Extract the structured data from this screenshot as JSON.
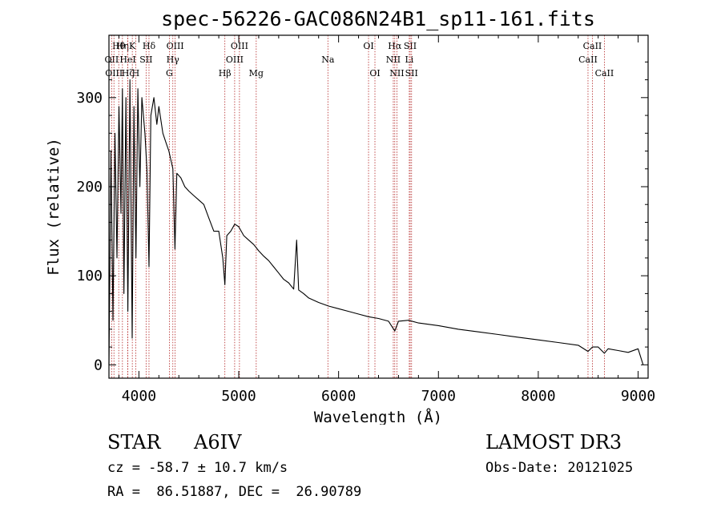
{
  "chart_data": {
    "type": "line",
    "title": "spec-56226-GAC086N24B1_sp11-161.fits",
    "xlabel": "Wavelength (Å)",
    "ylabel": "Flux (relative)",
    "xlim": [
      3700,
      9100
    ],
    "ylim": [
      -15,
      370
    ],
    "xticks": [
      4000,
      5000,
      6000,
      7000,
      8000,
      9000
    ],
    "yticks": [
      0,
      100,
      200,
      300
    ],
    "grid": false,
    "series": [
      {
        "name": "spectrum",
        "x": [
          3700,
          3720,
          3740,
          3760,
          3780,
          3800,
          3820,
          3835,
          3850,
          3870,
          3889,
          3910,
          3933,
          3950,
          3970,
          3990,
          4010,
          4030,
          4060,
          4080,
          4101,
          4120,
          4150,
          4180,
          4200,
          4240,
          4270,
          4300,
          4340,
          4361,
          4380,
          4420,
          4460,
          4500,
          4550,
          4600,
          4650,
          4700,
          4750,
          4800,
          4840,
          4861,
          4880,
          4920,
          4960,
          5000,
          5050,
          5100,
          5150,
          5200,
          5250,
          5300,
          5350,
          5400,
          5450,
          5500,
          5550,
          5580,
          5600,
          5650,
          5700,
          5800,
          5900,
          6000,
          6100,
          6200,
          6300,
          6400,
          6500,
          6563,
          6600,
          6700,
          6800,
          7000,
          7200,
          7400,
          7600,
          7800,
          8000,
          8200,
          8400,
          8498,
          8542,
          8600,
          8662,
          8700,
          8800,
          8900,
          9000,
          9050
        ],
        "y": [
          0,
          240,
          50,
          260,
          120,
          290,
          170,
          310,
          80,
          300,
          60,
          320,
          30,
          290,
          120,
          310,
          200,
          300,
          260,
          220,
          110,
          280,
          300,
          270,
          290,
          260,
          250,
          240,
          220,
          130,
          215,
          210,
          200,
          195,
          190,
          185,
          180,
          165,
          150,
          150,
          120,
          90,
          145,
          150,
          158,
          155,
          145,
          140,
          135,
          128,
          122,
          117,
          110,
          103,
          96,
          92,
          85,
          140,
          84,
          80,
          75,
          70,
          66,
          63,
          60,
          57,
          54,
          52,
          49,
          38,
          49,
          50,
          47,
          44,
          40,
          37,
          34,
          31,
          28,
          25,
          22,
          15,
          20,
          20,
          13,
          18,
          16,
          14,
          18,
          0
        ]
      }
    ],
    "lines": [
      {
        "label": "Hθ",
        "x": 3798,
        "row": 1
      },
      {
        "label": "OII",
        "x": 3727,
        "row": 2
      },
      {
        "label": "OIII",
        "x": 3750,
        "row": 3
      },
      {
        "label": "Hη",
        "x": 3835,
        "row": 1
      },
      {
        "label": "HeI",
        "x": 3889,
        "row": 2
      },
      {
        "label": "Hζ",
        "x": 3889,
        "row": 3
      },
      {
        "label": "K",
        "x": 3934,
        "row": 1
      },
      {
        "label": "SII",
        "x": 4072,
        "row": 2
      },
      {
        "label": "H",
        "x": 3968,
        "row": 3
      },
      {
        "label": "Hδ",
        "x": 4101,
        "row": 1
      },
      {
        "label": "OIII",
        "x": 4363,
        "row": 1
      },
      {
        "label": "Hγ",
        "x": 4340,
        "row": 2
      },
      {
        "label": "G",
        "x": 4305,
        "row": 3
      },
      {
        "label": "Hβ",
        "x": 4861,
        "row": 3
      },
      {
        "label": "OIII",
        "x": 5007,
        "row": 1
      },
      {
        "label": "OIII",
        "x": 4959,
        "row": 2
      },
      {
        "label": "Mg",
        "x": 5175,
        "row": 3
      },
      {
        "label": "Na",
        "x": 5893,
        "row": 2
      },
      {
        "label": "OI",
        "x": 6300,
        "row": 1
      },
      {
        "label": "OI",
        "x": 6364,
        "row": 3
      },
      {
        "label": "Hα",
        "x": 6563,
        "row": 1
      },
      {
        "label": "NII",
        "x": 6548,
        "row": 2
      },
      {
        "label": "NII",
        "x": 6584,
        "row": 3
      },
      {
        "label": "SII",
        "x": 6717,
        "row": 1
      },
      {
        "label": "Li",
        "x": 6708,
        "row": 2
      },
      {
        "label": "SII",
        "x": 6731,
        "row": 3
      },
      {
        "label": "CaII",
        "x": 8542,
        "row": 1
      },
      {
        "label": "CaII",
        "x": 8498,
        "row": 2
      },
      {
        "label": "CaII",
        "x": 8662,
        "row": 3
      }
    ]
  },
  "info": {
    "object_class": "STAR",
    "subclass": "A6IV",
    "survey": "LAMOST DR3",
    "cz": "cz = -58.7 ± 10.7 km/s",
    "obs_date": "Obs-Date: 20121025",
    "coords": "RA =  86.51887, DEC =  26.90789"
  }
}
